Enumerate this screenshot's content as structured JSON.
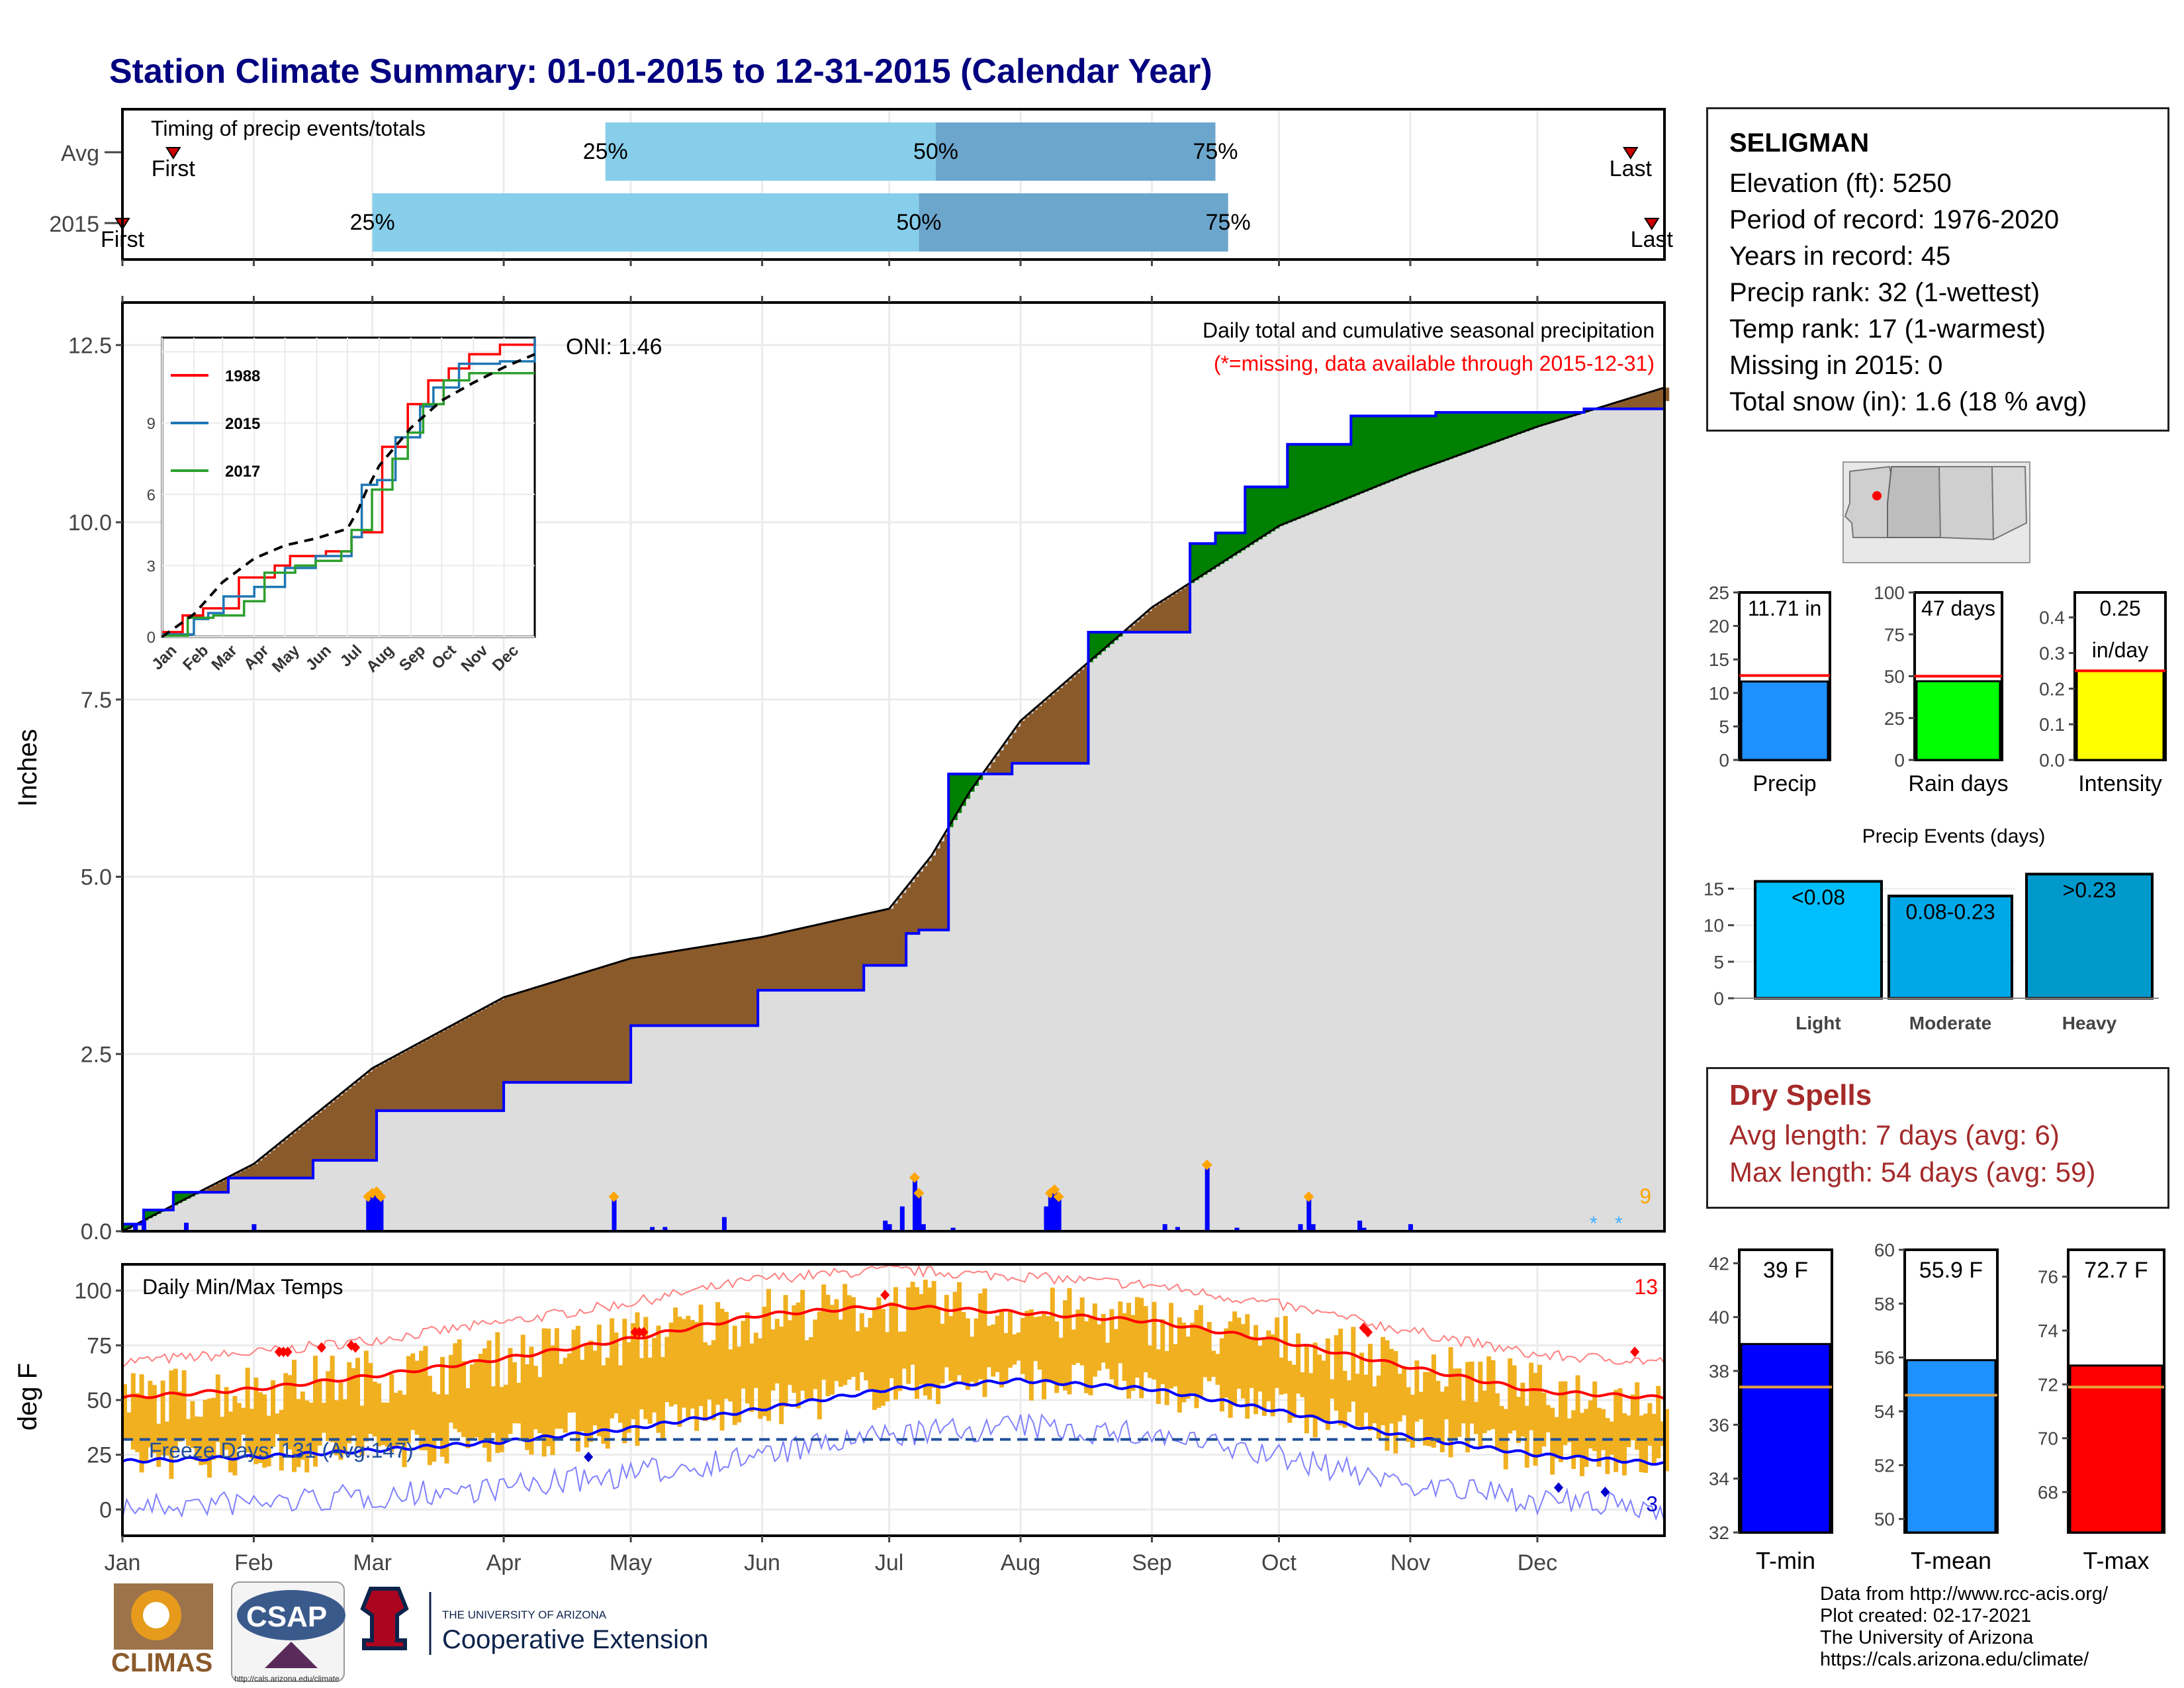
{
  "title": "Station Climate Summary: 01-01-2015 to 12-31-2015 (Calendar Year)",
  "timing": {
    "label": "Timing of precip events/totals",
    "rows": [
      "Avg",
      "2015"
    ],
    "avg": {
      "first": "First",
      "last": "Last",
      "p25": "25%",
      "p50": "50%",
      "p75": "75%",
      "first_day": 12,
      "last_day": 356,
      "q25_day": 114,
      "q50_day": 192,
      "q75_day": 258
    },
    "y2015": {
      "first": "First",
      "last": "Last",
      "p25": "25%",
      "p50": "50%",
      "p75": "75%",
      "first_day": 0,
      "last_day": 361,
      "q25_day": 59,
      "q50_day": 188,
      "q75_day": 261
    },
    "colors": {
      "light": "#87ceeb",
      "dark": "#6ca6cd",
      "marker": "#cc0000"
    }
  },
  "main": {
    "ylabel": "Inches",
    "yticks": [
      "0.0",
      "2.5",
      "5.0",
      "7.5",
      "10.0",
      "12.5"
    ],
    "ylim": [
      0,
      13.1
    ],
    "legend_text": "Daily total and cumulative seasonal precipitation",
    "missing_note": "(*=missing, data available through 2015-12-31)",
    "oni": "ONI: 1.46",
    "count_label": "9",
    "colors": {
      "above": "#008000",
      "below": "#8b5a2b",
      "normal": "#dddddd",
      "line": "#0000ff",
      "bars": "#0000ff",
      "heavy": "#ffa500"
    }
  },
  "inset": {
    "yticks": [
      "0",
      "3",
      "6",
      "9"
    ],
    "months": [
      "Jan",
      "Feb",
      "Mar",
      "Apr",
      "May",
      "Jun",
      "Jul",
      "Aug",
      "Sep",
      "Oct",
      "Nov",
      "Dec"
    ],
    "legend": [
      {
        "name": "1988",
        "color": "#ff0000"
      },
      {
        "name": "2015",
        "color": "#1f77b4"
      },
      {
        "name": "2017",
        "color": "#2ca02c"
      }
    ]
  },
  "temps": {
    "label": "Daily Min/Max Temps",
    "ylabel": "deg F",
    "yticks": [
      "0",
      "25",
      "50",
      "75",
      "100"
    ],
    "ylim": [
      -12,
      112
    ],
    "freeze_label": "Freeze Days: 131 (Avg:147)",
    "hot_count": "13",
    "cold_count": "3",
    "freeze_line": 32,
    "colors": {
      "band": "#f0b020",
      "maxline": "#ff0000",
      "minline": "#0000ff"
    }
  },
  "months": [
    "Jan",
    "Feb",
    "Mar",
    "Apr",
    "May",
    "Jun",
    "Jul",
    "Aug",
    "Sep",
    "Oct",
    "Nov",
    "Dec"
  ],
  "station": {
    "name": "SELIGMAN",
    "elevation": "Elevation (ft): 5250",
    "period": "Period of record: 1976-2020",
    "years": "Years in record: 45",
    "precip_rank": "Precip rank: 32 (1-wettest)",
    "temp_rank": "Temp rank: 17 (1-warmest)",
    "missing": "Missing in 2015: 0",
    "snow": "Total snow (in): 1.6 (18 % avg)"
  },
  "mini_bars": [
    {
      "label": "Precip",
      "value_text": "11.71 in",
      "value": 11.71,
      "avg": 12.6,
      "max": 25,
      "ticks": [
        "0",
        "5",
        "10",
        "15",
        "20",
        "25"
      ],
      "color": "#1e90ff"
    },
    {
      "label": "Rain days",
      "value_text": "47 days",
      "value": 47,
      "avg": 50,
      "max": 100,
      "ticks": [
        "0",
        "25",
        "50",
        "75",
        "100"
      ],
      "color": "#00ff00"
    },
    {
      "label": "Intensity",
      "value_text": "0.25",
      "value_text2": "in/day",
      "value": 0.25,
      "avg": 0.25,
      "max": 0.47,
      "ticks": [
        "0.0",
        "0.1",
        "0.2",
        "0.3",
        "0.4"
      ],
      "color": "#ffff00"
    }
  ],
  "events": {
    "title": "Precip Events (days)",
    "ticks": [
      "0",
      "5",
      "10",
      "15"
    ],
    "bars": [
      {
        "label": "Light",
        "range": "<0.08",
        "value": 16,
        "color": "#00bfff"
      },
      {
        "label": "Moderate",
        "range": "0.08-0.23",
        "value": 14,
        "color": "#00a8e8"
      },
      {
        "label": "Heavy",
        "range": ">0.23",
        "value": 17,
        "color": "#0099cc"
      }
    ]
  },
  "dry": {
    "title": "Dry Spells",
    "avg": "Avg length: 7 days (avg: 6)",
    "max": "Max length: 54 days (avg: 59)"
  },
  "temp_bars": [
    {
      "label": "T-min",
      "value_text": "39 F",
      "value": 39,
      "avg": 37.4,
      "min": 32,
      "max": 42.5,
      "ticks": [
        "32",
        "34",
        "36",
        "38",
        "40",
        "42"
      ],
      "color": "#0000ff"
    },
    {
      "label": "T-mean",
      "value_text": "55.9 F",
      "value": 55.9,
      "avg": 54.6,
      "min": 49.5,
      "max": 60,
      "ticks": [
        "50",
        "52",
        "54",
        "56",
        "58",
        "60"
      ],
      "color": "#1e90ff"
    },
    {
      "label": "T-max",
      "value_text": "72.7 F",
      "value": 72.7,
      "avg": 71.9,
      "min": 66.5,
      "max": 77,
      "ticks": [
        "68",
        "70",
        "72",
        "74",
        "76"
      ],
      "color": "#ff0000"
    }
  ],
  "credits": [
    "Data from http://www.rcc-acis.org/",
    "Plot created: 02-17-2021",
    "The University of Arizona",
    "https://cals.arizona.edu/climate/"
  ],
  "logos": {
    "climas": "CLIMAS",
    "csap": "CSAP",
    "csap_url": "http://cals.arizona.edu/climate",
    "ua_line1": "THE UNIVERSITY OF ARIZONA",
    "ua_line2": "Cooperative Extension"
  },
  "chart_data": {
    "type": "area",
    "title": "Station Climate Summary: 01-01-2015 to 12-31-2015 (Calendar Year)",
    "ylabel": "Inches",
    "ylim": [
      0,
      13.1
    ],
    "x_unit": "day of year",
    "series": [
      {
        "name": "2015 cumulative precipitation",
        "x": [
          0,
          5,
          12,
          25,
          45,
          60,
          90,
          120,
          150,
          175,
          185,
          188,
          195,
          210,
          228,
          238,
          252,
          258,
          265,
          275,
          290,
          310,
          330,
          345,
          364
        ],
        "y": [
          0.1,
          0.3,
          0.55,
          0.75,
          1.0,
          1.7,
          2.1,
          2.9,
          3.4,
          3.75,
          4.2,
          4.25,
          6.45,
          6.6,
          8.45,
          8.45,
          9.7,
          9.85,
          10.5,
          11.1,
          11.5,
          11.55,
          11.55,
          11.6,
          11.71
        ]
      },
      {
        "name": "Average cumulative precipitation",
        "x": [
          0,
          31,
          59,
          90,
          120,
          151,
          181,
          191,
          200,
          212,
          243,
          273,
          304,
          334,
          364
        ],
        "y": [
          0.0,
          0.95,
          2.3,
          3.3,
          3.85,
          4.15,
          4.55,
          5.3,
          6.2,
          7.2,
          8.8,
          9.95,
          10.7,
          11.35,
          11.9
        ]
      }
    ],
    "daily_precip": [
      [
        3,
        0.1
      ],
      [
        5,
        0.15
      ],
      [
        15,
        0.12
      ],
      [
        31,
        0.1
      ],
      [
        58,
        0.45
      ],
      [
        59,
        0.5
      ],
      [
        60,
        0.52
      ],
      [
        61,
        0.45
      ],
      [
        116,
        0.45
      ],
      [
        125,
        0.06
      ],
      [
        128,
        0.06
      ],
      [
        142,
        0.2
      ],
      [
        180,
        0.15
      ],
      [
        181,
        0.1
      ],
      [
        184,
        0.35
      ],
      [
        187,
        0.72
      ],
      [
        188,
        0.5
      ],
      [
        189,
        0.1
      ],
      [
        196,
        0.05
      ],
      [
        218,
        0.35
      ],
      [
        219,
        0.5
      ],
      [
        220,
        0.55
      ],
      [
        221,
        0.45
      ],
      [
        246,
        0.1
      ],
      [
        249,
        0.06
      ],
      [
        256,
        0.9
      ],
      [
        263,
        0.05
      ],
      [
        278,
        0.1
      ],
      [
        280,
        0.45
      ],
      [
        281,
        0.1
      ],
      [
        292,
        0.15
      ],
      [
        293,
        0.05
      ],
      [
        304,
        0.1
      ]
    ],
    "temperature": {
      "avg_max": [
        [
          0,
          51
        ],
        [
          31,
          55
        ],
        [
          59,
          61
        ],
        [
          90,
          69
        ],
        [
          120,
          78
        ],
        [
          151,
          89
        ],
        [
          181,
          93
        ],
        [
          212,
          90
        ],
        [
          243,
          86
        ],
        [
          273,
          77
        ],
        [
          304,
          65
        ],
        [
          334,
          54
        ],
        [
          364,
          51
        ]
      ],
      "avg_min": [
        [
          0,
          22
        ],
        [
          31,
          24
        ],
        [
          59,
          27
        ],
        [
          90,
          31
        ],
        [
          120,
          37
        ],
        [
          151,
          46
        ],
        [
          181,
          55
        ],
        [
          212,
          59
        ],
        [
          243,
          55
        ],
        [
          273,
          45
        ],
        [
          304,
          33
        ],
        [
          334,
          25
        ],
        [
          364,
          21
        ]
      ],
      "freeze_threshold": 32
    }
  }
}
